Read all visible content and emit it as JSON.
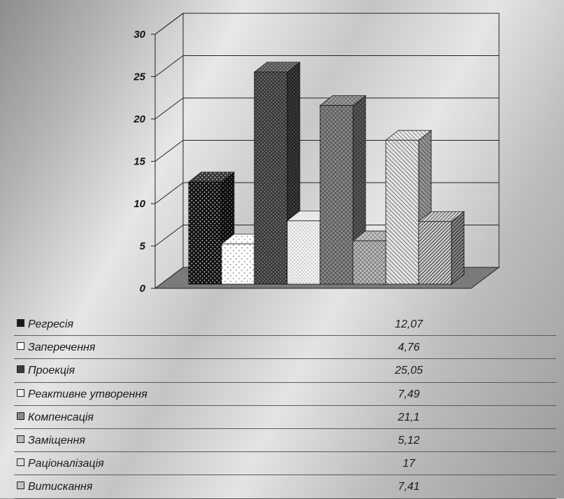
{
  "chart_data": {
    "type": "bar",
    "categories": [
      "Регресія",
      "Заперечення",
      "Проекція",
      "Реактивне утворення",
      "Компенсація",
      "Заміщення",
      "Раціоналізація",
      "Витискання"
    ],
    "values": [
      12.07,
      4.76,
      25.05,
      7.49,
      21.1,
      5.12,
      17,
      7.41
    ],
    "value_labels": [
      "12,07",
      "4,76",
      "25,05",
      "7,49",
      "21,1",
      "5,12",
      "17",
      "7,41"
    ],
    "y_ticks": [
      "0",
      "5",
      "10",
      "15",
      "20",
      "25",
      "30"
    ],
    "ylim": [
      0,
      30
    ],
    "title": "",
    "xlabel": "",
    "ylabel": "",
    "grid": true,
    "legend": "table below chart",
    "style": "3d-column",
    "fills": [
      "#1a1a1a",
      "#ffffff",
      "#3c3c3c",
      "#ededed",
      "#8a8a8a",
      "#b8b8b8",
      "#dddddd",
      "#c2c2c2"
    ],
    "patterns": [
      "dots-light-on-dark",
      "dots-dark-on-light",
      "dots-light-on-dark",
      "dots-dark-on-light",
      "crosshatch",
      "crosshatch",
      "diagonal-lines",
      "diagonal-lines"
    ]
  }
}
